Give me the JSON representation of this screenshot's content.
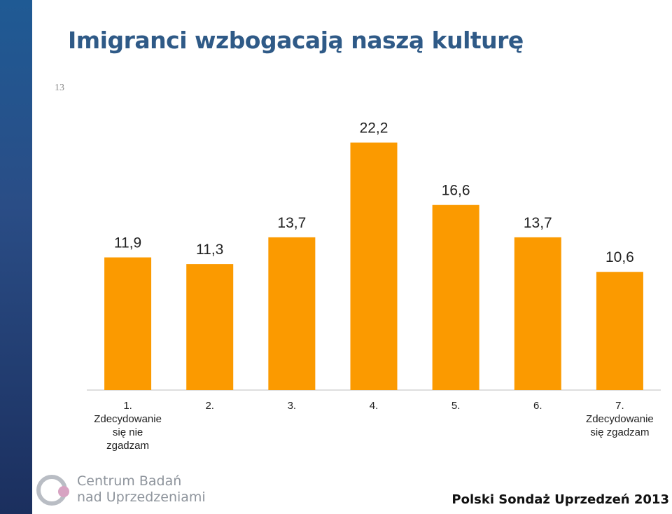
{
  "slide": {
    "title": "Imigranci wzbogacają naszą kulturę",
    "number": "13"
  },
  "chart_data": {
    "type": "bar",
    "categories": [
      [
        "1.",
        "Zdecydowanie",
        "się nie",
        "zgadzam"
      ],
      [
        "2."
      ],
      [
        "3."
      ],
      [
        "4."
      ],
      [
        "5."
      ],
      [
        "6."
      ],
      [
        "7.",
        "Zdecydowanie",
        "się zgadzam"
      ]
    ],
    "values": [
      11.9,
      11.3,
      13.7,
      22.2,
      16.6,
      13.7,
      10.6
    ],
    "value_labels": [
      "11,9",
      "11,3",
      "13,7",
      "22,2",
      "16,6",
      "13,7",
      "10,6"
    ],
    "ylim": [
      0,
      25
    ],
    "grid": false,
    "bar_color": "#fb9a00"
  },
  "footer": {
    "logo_line1": "Centrum Badań",
    "logo_line2": "nad Uprzedzeniami",
    "survey_title": "Polski Sondaż Uprzedzeń 2013"
  }
}
